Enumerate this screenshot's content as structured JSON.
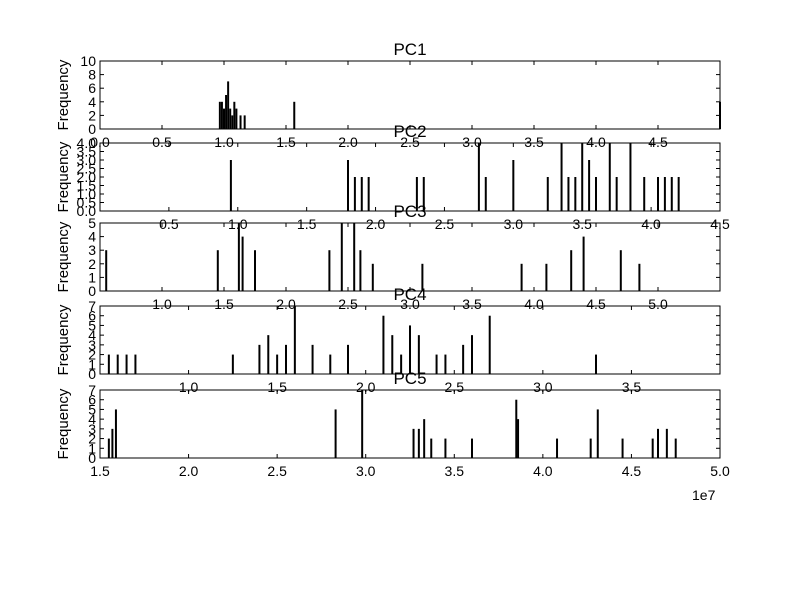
{
  "chart_data": [
    {
      "type": "bar",
      "title": "PC1",
      "ylabel": "Frequency",
      "xlabel": "",
      "xlim": [
        0,
        1.5
      ],
      "ylim": [
        0,
        10
      ],
      "xticks": [
        "0.0",
        "0.5",
        "1.0",
        "1.5",
        "2.0",
        "2.5",
        "3.0",
        "3.5",
        "4.0",
        "4.5"
      ],
      "xtick_values": [
        0.0,
        0.15,
        0.3,
        0.45,
        0.6,
        0.75,
        0.9,
        1.05,
        1.2,
        1.35
      ],
      "yticks": [
        "0",
        "2",
        "4",
        "6",
        "8",
        "10"
      ],
      "ytick_values": [
        0,
        2,
        4,
        6,
        8,
        10
      ],
      "x": [
        0.29,
        0.295,
        0.3,
        0.305,
        0.31,
        0.315,
        0.32,
        0.325,
        0.33,
        0.34,
        0.35,
        0.47,
        1.5
      ],
      "y": [
        4,
        4,
        3,
        5,
        7,
        3,
        2,
        4,
        3,
        2,
        2,
        4,
        4
      ]
    },
    {
      "type": "bar",
      "title": "PC2",
      "ylabel": "Frequency",
      "xlabel": "",
      "xlim": [
        0,
        4.5
      ],
      "ylim": [
        0,
        4
      ],
      "xticks": [
        "0.5",
        "1.0",
        "1.5",
        "2.0",
        "2.5",
        "3.0",
        "3.5",
        "4.0",
        "4.5"
      ],
      "xtick_values": [
        0.5,
        1.0,
        1.5,
        2.0,
        2.5,
        3.0,
        3.5,
        4.0,
        4.5
      ],
      "yticks": [
        "0.0",
        "0.5",
        "1.0",
        "1.5",
        "2.0",
        "2.5",
        "3.0",
        "3.5",
        "4.0"
      ],
      "ytick_values": [
        0.0,
        0.5,
        1.0,
        1.5,
        2.0,
        2.5,
        3.0,
        3.5,
        4.0
      ],
      "x": [
        0.95,
        1.8,
        1.85,
        1.9,
        1.95,
        2.3,
        2.35,
        2.75,
        2.8,
        3.0,
        3.25,
        3.35,
        3.4,
        3.45,
        3.5,
        3.55,
        3.6,
        3.7,
        3.75,
        3.85,
        3.95,
        4.05,
        4.1,
        4.15,
        4.2
      ],
      "y": [
        3,
        3,
        2,
        2,
        2,
        2,
        2,
        4,
        2,
        3,
        2,
        4,
        2,
        2,
        4,
        3,
        2,
        4,
        2,
        4,
        2,
        2,
        2,
        2,
        2
      ]
    },
    {
      "type": "bar",
      "title": "PC3",
      "ylabel": "Frequency",
      "xlabel": "",
      "xlim": [
        0,
        5
      ],
      "ylim": [
        0,
        5
      ],
      "xticks": [
        "1.0",
        "1.5",
        "2.0",
        "2.5",
        "3.0",
        "3.5",
        "4.0",
        "4.5",
        "5.0"
      ],
      "xtick_values": [
        0.5,
        1.0,
        1.5,
        2.0,
        2.5,
        3.0,
        3.5,
        4.0,
        4.5
      ],
      "yticks": [
        "0",
        "1",
        "2",
        "3",
        "4",
        "5"
      ],
      "ytick_values": [
        0,
        1,
        2,
        3,
        4,
        5
      ],
      "x": [
        0.05,
        0.95,
        1.12,
        1.15,
        1.25,
        1.85,
        1.95,
        2.05,
        2.1,
        2.2,
        2.6,
        3.4,
        3.6,
        3.8,
        3.9,
        4.2,
        4.35
      ],
      "y": [
        3,
        3,
        5,
        4,
        3,
        3,
        5,
        5,
        3,
        2,
        2,
        2,
        2,
        3,
        4,
        3,
        2
      ]
    },
    {
      "type": "bar",
      "title": "PC4",
      "ylabel": "Frequency",
      "xlabel": "",
      "xlim": [
        0,
        3.5
      ],
      "ylim": [
        0,
        7
      ],
      "xticks": [
        "1.0",
        "1.5",
        "2.0",
        "2.5",
        "3.0",
        "3.5"
      ],
      "xtick_values": [
        0.5,
        1.0,
        1.5,
        2.0,
        2.5,
        3.0
      ],
      "yticks": [
        "0",
        "1",
        "2",
        "3",
        "4",
        "5",
        "6",
        "7"
      ],
      "ytick_values": [
        0,
        1,
        2,
        3,
        4,
        5,
        6,
        7
      ],
      "x": [
        0.05,
        0.1,
        0.15,
        0.2,
        0.75,
        0.9,
        0.95,
        1.0,
        1.05,
        1.1,
        1.2,
        1.3,
        1.4,
        1.6,
        1.65,
        1.7,
        1.75,
        1.8,
        1.9,
        1.95,
        2.05,
        2.1,
        2.2,
        2.8
      ],
      "y": [
        2,
        2,
        2,
        2,
        2,
        3,
        4,
        2,
        3,
        7,
        3,
        2,
        3,
        6,
        4,
        2,
        5,
        4,
        2,
        2,
        3,
        4,
        6,
        2
      ]
    },
    {
      "type": "bar",
      "title": "PC5",
      "ylabel": "Frequency",
      "xlabel": "",
      "xlim": [
        1.5,
        5.0
      ],
      "ylim": [
        0,
        7
      ],
      "xticks": [
        "1.5",
        "2.0",
        "2.5",
        "3.0",
        "3.5",
        "4.0",
        "4.5",
        "5.0"
      ],
      "xtick_values": [
        1.5,
        2.0,
        2.5,
        3.0,
        3.5,
        4.0,
        4.5,
        5.0
      ],
      "yticks": [
        "0",
        "1",
        "2",
        "3",
        "4",
        "5",
        "6",
        "7"
      ],
      "ytick_values": [
        0,
        1,
        2,
        3,
        4,
        5,
        6,
        7
      ],
      "offset_text": "1e7",
      "x": [
        1.55,
        1.57,
        1.59,
        2.83,
        2.98,
        3.27,
        3.3,
        3.33,
        3.37,
        3.45,
        3.6,
        3.85,
        3.86,
        4.08,
        4.27,
        4.31,
        4.45,
        4.62,
        4.65,
        4.7,
        4.75
      ],
      "y": [
        2,
        3,
        5,
        5,
        7,
        3,
        3,
        4,
        2,
        2,
        2,
        6,
        4,
        2,
        2,
        5,
        2,
        2,
        3,
        3,
        2
      ]
    }
  ]
}
